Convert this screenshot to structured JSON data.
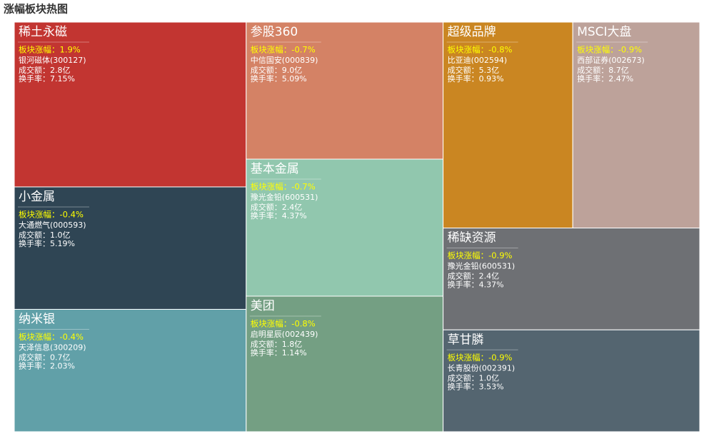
{
  "chart_data": {
    "type": "treemap",
    "title": "涨幅板块热图",
    "items": [
      {
        "name": "稀土永磁",
        "color": "#c23531",
        "value": 13.6,
        "change": "板块涨幅：1.9%",
        "stock": "银河磁体(300127)",
        "amount": "成交额：2.8亿",
        "rate": "换手率：7.15%"
      },
      {
        "name": "小金属",
        "color": "#2f4554",
        "value": 10.1,
        "change": "板块涨幅：-0.4%",
        "stock": "大通燃气(000593)",
        "amount": "成交额：1.0亿",
        "rate": "换手率：5.19%"
      },
      {
        "name": "纳米银",
        "color": "#61a0a8",
        "value": 10.1,
        "change": "板块涨幅：-0.4%",
        "stock": "天泽信息(300209)",
        "amount": "成交额：0.7亿",
        "rate": "换手率：2.03%"
      },
      {
        "name": "参股360",
        "color": "#d48265",
        "value": 9.6,
        "change": "板块涨幅：-0.7%",
        "stock": "中信国安(000839)",
        "amount": "成交额：9.0亿",
        "rate": "换手率：5.09%"
      },
      {
        "name": "基本金属",
        "color": "#91c7ae",
        "value": 9.6,
        "change": "板块涨幅：-0.7%",
        "stock": "豫光金铅(600531)",
        "amount": "成交额：2.4亿",
        "rate": "换手率：4.37%"
      },
      {
        "name": "美团",
        "color": "#749f83",
        "value": 9.5,
        "change": "板块涨幅：-0.8%",
        "stock": "启明星辰(002439)",
        "amount": "成交额：1.8亿",
        "rate": "换手率：1.14%"
      },
      {
        "name": "超级品牌",
        "color": "#ca8622",
        "value": 9.5,
        "change": "板块涨幅：-0.8%",
        "stock": "比亚迪(002594)",
        "amount": "成交额：5.3亿",
        "rate": "换手率：0.93%"
      },
      {
        "name": "MSCI大盘",
        "color": "#bda29a",
        "value": 9.3,
        "change": "板块涨幅：-0.9%",
        "stock": "西部证券(002673)",
        "amount": "成交额：8.7亿",
        "rate": "换手率：2.47%"
      },
      {
        "name": "稀缺资源",
        "color": "#6e7074",
        "value": 9.3,
        "change": "板块涨幅：-0.9%",
        "stock": "豫光金铅(600531)",
        "amount": "成交额：2.4亿",
        "rate": "换手率：4.37%"
      },
      {
        "name": "草甘膦",
        "color": "#546570",
        "value": 9.3,
        "change": "板块涨幅：-0.9%",
        "stock": "长青股份(002391)",
        "amount": "成交额：1.0亿",
        "rate": "换手率：3.53%"
      }
    ]
  }
}
